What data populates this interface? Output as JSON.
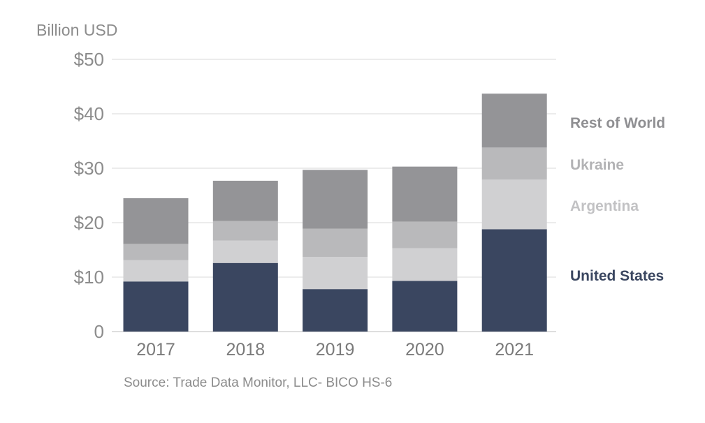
{
  "chart_data": {
    "type": "bar",
    "stacked": true,
    "ylabel": "Billion USD",
    "source": "Source: Trade Data Monitor, LLC- BICO HS-6",
    "categories": [
      "2017",
      "2018",
      "2019",
      "2020",
      "2021"
    ],
    "ylim": [
      0,
      50
    ],
    "yticks": [
      0,
      10,
      20,
      30,
      40,
      50
    ],
    "ytick_labels": [
      "0",
      "$10",
      "$20",
      "$30",
      "$40",
      "$50"
    ],
    "grid": true,
    "legend_position": "right",
    "series": [
      {
        "name": "United States",
        "color": "#3a4660",
        "values": [
          9.2,
          12.6,
          7.8,
          9.3,
          18.8
        ]
      },
      {
        "name": "Argentina",
        "color": "#d0d0d2",
        "values": [
          3.9,
          4.1,
          5.9,
          6.0,
          9.1
        ]
      },
      {
        "name": "Ukraine",
        "color": "#b9b9bb",
        "values": [
          3.0,
          3.6,
          5.2,
          4.9,
          5.9
        ]
      },
      {
        "name": "Rest of World",
        "color": "#949497",
        "values": [
          8.4,
          7.4,
          10.8,
          10.1,
          9.9
        ]
      }
    ],
    "legend_colors": {
      "United States": "#3a4660",
      "Argentina": "#c2c2c4",
      "Ukraine": "#b3b3b5",
      "Rest of World": "#8f8f92"
    }
  }
}
